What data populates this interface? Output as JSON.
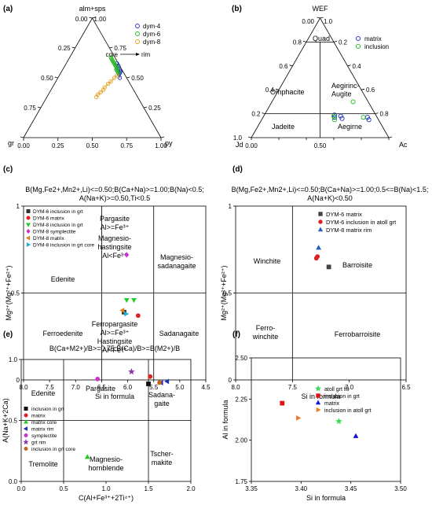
{
  "chart_data": [
    {
      "id": "a",
      "type": "ternary",
      "panel_label": "(a)",
      "apex_labels": {
        "top": "alm+sps",
        "left": "gr",
        "right": "py"
      },
      "tick_values": [
        "0.00",
        "0.25",
        "0.50",
        "0.75",
        "1.00"
      ],
      "annotation": "core → rim",
      "legend": {
        "placement": "top-right",
        "entries": [
          "dym-4",
          "dym-6",
          "dym-8"
        ]
      },
      "series": [
        {
          "name": "dym-4",
          "color": "#1f2fbf",
          "marker": "open-circle",
          "points": [
            [
              0.54,
              0.43
            ],
            [
              0.55,
              0.43
            ],
            [
              0.56,
              0.42
            ],
            [
              0.53,
              0.43
            ],
            [
              0.5,
              0.45
            ],
            [
              0.58,
              0.4
            ],
            [
              0.6,
              0.39
            ],
            [
              0.62,
              0.37
            ]
          ]
        },
        {
          "name": "dym-6",
          "color": "#22b822",
          "marker": "open-circle",
          "points": [
            [
              0.54,
              0.42
            ],
            [
              0.55,
              0.41
            ],
            [
              0.56,
              0.4
            ],
            [
              0.57,
              0.39
            ],
            [
              0.58,
              0.39
            ],
            [
              0.59,
              0.38
            ],
            [
              0.6,
              0.37
            ],
            [
              0.61,
              0.36
            ],
            [
              0.62,
              0.35
            ],
            [
              0.63,
              0.34
            ],
            [
              0.64,
              0.33
            ],
            [
              0.65,
              0.32
            ],
            [
              0.66,
              0.31
            ],
            [
              0.67,
              0.3
            ]
          ]
        },
        {
          "name": "dym-8",
          "color": "#e0a020",
          "marker": "open-circle",
          "points": [
            [
              0.52,
              0.42
            ],
            [
              0.5,
              0.41
            ],
            [
              0.47,
              0.4
            ],
            [
              0.45,
              0.39
            ],
            [
              0.42,
              0.38
            ],
            [
              0.4,
              0.38
            ],
            [
              0.38,
              0.37
            ],
            [
              0.36,
              0.36
            ],
            [
              0.34,
              0.36
            ]
          ]
        }
      ]
    },
    {
      "id": "b",
      "type": "ternary",
      "panel_label": "(b)",
      "apex_labels": {
        "top": "WEF",
        "left": "Jd",
        "right": "Ac"
      },
      "tick_values": [
        "0.00",
        "0.2",
        "0.4",
        "0.6",
        "0.8",
        "1.0"
      ],
      "field_labels": [
        "Quad",
        "Omphacite",
        "Aegirinc-\nAugite",
        "Jadeite",
        "Aegirne"
      ],
      "legend": {
        "placement": "top-right",
        "entries": [
          "matrix",
          "inclusion"
        ]
      },
      "series": [
        {
          "name": "matrix",
          "color": "#1f2fbf",
          "marker": "open-circle",
          "points": [
            [
              0.15,
              0.78
            ],
            [
              0.17,
              0.76
            ],
            [
              0.16,
              0.58
            ],
            [
              0.18,
              0.56
            ],
            [
              0.17,
              0.52
            ],
            [
              0.19,
              0.51
            ]
          ]
        },
        {
          "name": "inclusion",
          "color": "#22b822",
          "marker": "open-circle",
          "points": [
            [
              0.17,
              0.73
            ],
            [
              0.15,
              0.53
            ],
            [
              0.18,
              0.51
            ],
            [
              0.3,
              0.59
            ]
          ]
        }
      ]
    },
    {
      "id": "c",
      "type": "scatter",
      "panel_label": "(c)",
      "title": "B(Mg,Fe2+,Mn2+,Li)<=0.50;B(Ca+Na)>=1.00;B(Na)<0.5;\nA(Na+K)>=0.50,Ti<0.5",
      "xlabel": "Si in formula",
      "ylabel": "Mg²⁺(Mg²⁺+Fe²⁺)",
      "xlim": [
        8.0,
        4.5
      ],
      "ylim": [
        0,
        1
      ],
      "x_ticks": [
        "8.0",
        "7.5",
        "7.0",
        "6.5",
        "6.0",
        "5.5",
        "5.0",
        "4.5"
      ],
      "y_ticks": [
        "0",
        "0.5",
        "1"
      ],
      "field_labels": [
        "Pargasite\nAl>=Fe³⁺",
        "Magnesio-\nhastingsite\nAl<Fe³⁺",
        "Magnesio-\nsadanagaite",
        "Edenite",
        "Ferroedenite",
        "Ferropargasite\nAl>=Fe³⁺\nHastingsite\nAl<Fe³⁺",
        "Sadanagaite"
      ],
      "legend": {
        "placement": "top-left",
        "entries": [
          "DYM-6 inclusion in grt",
          "DYM-6 matrix",
          "DYM-8 inclusion in grt",
          "DYM-8 symplectite",
          "DYM-8 matrix",
          "DYM-8 inclusion in grt core"
        ]
      },
      "series": [
        {
          "name": "DYM-6 inclusion in grt",
          "color": "#333333",
          "marker": "square",
          "x": [
            6.07
          ],
          "y": [
            0.39
          ]
        },
        {
          "name": "DYM-6 matrix",
          "color": "#e02020",
          "marker": "circle",
          "x": [
            5.8
          ],
          "y": [
            0.37
          ]
        },
        {
          "name": "DYM-8 inclusion in grt",
          "color": "#22cc22",
          "marker": "triangle-down",
          "x": [
            6.02,
            5.88
          ],
          "y": [
            0.46,
            0.46
          ]
        },
        {
          "name": "DYM-8 symplectite",
          "color": "#cc33cc",
          "marker": "diamond",
          "x": [
            6.02
          ],
          "y": [
            0.72
          ]
        },
        {
          "name": "DYM-8 matrix",
          "color": "#e08020",
          "marker": "triangle-left",
          "x": [
            6.1
          ],
          "y": [
            0.4
          ]
        },
        {
          "name": "DYM-8 inclusion in grt core",
          "color": "#20b0d0",
          "marker": "triangle-right",
          "x": [
            6.03
          ],
          "y": [
            0.38
          ]
        }
      ]
    },
    {
      "id": "d",
      "type": "scatter",
      "panel_label": "(d)",
      "title": "B(Mg,Fe2+,Mn2+,Li)<=0.50;B(Ca+Na)>=1.00;0.5<=B(Na)<1.5;\nA(Na+K)<0.50",
      "xlabel": "Si in formula",
      "ylabel": "Mg²⁺(Mg²⁺+Fe²⁺)",
      "xlim": [
        8.0,
        6.5
      ],
      "ylim": [
        0,
        1
      ],
      "x_ticks": [
        "8.0",
        "7.5",
        "7.0",
        "6.5"
      ],
      "y_ticks": [
        "0",
        "0.5",
        "1"
      ],
      "field_labels": [
        "Winchite",
        "Barroisite",
        "Ferro-\nwinchite",
        "Ferrobarroisite"
      ],
      "legend": {
        "placement": "top-right",
        "entries": [
          "DYM-6 matrix",
          "DYM-6 inclusion in atoll grt",
          "DYM-8 matrix rim"
        ]
      },
      "series": [
        {
          "name": "DYM-6 matrix",
          "color": "#444444",
          "marker": "square",
          "x": [
            7.18
          ],
          "y": [
            0.65
          ]
        },
        {
          "name": "DYM-6 inclusion in atoll grt",
          "color": "#e02020",
          "marker": "circle",
          "x": [
            7.29,
            7.28
          ],
          "y": [
            0.7,
            0.71
          ]
        },
        {
          "name": "DYM-8 matrix rim",
          "color": "#2060c0",
          "marker": "triangle",
          "x": [
            7.27
          ],
          "y": [
            0.76
          ]
        }
      ]
    },
    {
      "id": "e",
      "type": "scatter",
      "panel_label": "(e)",
      "title": "B(Ca+M2+)/B>=0.75,B(Ca)/B>=B(M2+)/B",
      "xlabel": "C(Al+Fe³⁺+2Ti⁴⁺)",
      "ylabel": "A(Na+K+2Ca)",
      "xlim": [
        0,
        2
      ],
      "ylim": [
        0,
        1
      ],
      "x_ticks": [
        "0.0",
        "0.5",
        "1.0",
        "1.5",
        "2.0"
      ],
      "y_ticks": [
        "0.0",
        "0.5",
        "1.0"
      ],
      "field_labels": [
        "Edenite",
        "Pargasite",
        "Sadana-\ngaite",
        "Tremolite",
        "Magnesio-\nhornblende",
        "Tscher-\nmakite"
      ],
      "legend": {
        "placement": "bottom-left",
        "entries": [
          "inclusion in grt",
          "matrix",
          "matrix core",
          "matrix rim",
          "symplectite",
          "grt rim",
          "inclusion in grt core"
        ]
      },
      "series": [
        {
          "name": "inclusion in grt",
          "color": "#111111",
          "marker": "square",
          "x": [
            1.5
          ],
          "y": [
            0.8
          ]
        },
        {
          "name": "matrix",
          "color": "#e02020",
          "marker": "circle",
          "x": [
            1.52
          ],
          "y": [
            0.86
          ]
        },
        {
          "name": "matrix core",
          "color": "#22cc22",
          "marker": "triangle",
          "x": [
            0.78
          ],
          "y": [
            0.2
          ]
        },
        {
          "name": "matrix rim",
          "color": "#2030c0",
          "marker": "triangle-left",
          "x": [
            1.72,
            1.65
          ],
          "y": [
            0.82,
            0.81
          ]
        },
        {
          "name": "symplectite",
          "color": "#cc33cc",
          "marker": "circle",
          "x": [
            0.9
          ],
          "y": [
            0.84
          ]
        },
        {
          "name": "grt rim",
          "color": "#8833aa",
          "marker": "star",
          "x": [
            1.3
          ],
          "y": [
            0.9
          ]
        },
        {
          "name": "inclusion in grt core",
          "color": "#c86418",
          "marker": "circle",
          "x": [
            1.63
          ],
          "y": [
            0.81
          ]
        }
      ]
    },
    {
      "id": "f",
      "type": "scatter",
      "panel_label": "(f)",
      "xlabel": "Si in formula",
      "ylabel": "Al in formula",
      "xlim": [
        3.35,
        3.5
      ],
      "ylim": [
        1.75,
        2.5
      ],
      "x_ticks": [
        "3.35",
        "3.40",
        "3.45",
        "3.50"
      ],
      "y_ticks": [
        "1.75",
        "2.00",
        "2.25",
        "2.50"
      ],
      "legend": {
        "placement": "top-center",
        "entries": [
          "atoll grt fill",
          "inclusion in grt",
          "matrix",
          "inclusion in atoll grt"
        ]
      },
      "series": [
        {
          "name": "atoll grt fill",
          "color": "#33dd55",
          "marker": "star",
          "x": [
            3.438
          ],
          "y": [
            2.115
          ]
        },
        {
          "name": "inclusion in grt",
          "color": "#dd1111",
          "marker": "square",
          "x": [
            3.381
          ],
          "y": [
            2.225
          ]
        },
        {
          "name": "matrix",
          "color": "#1111dd",
          "marker": "triangle",
          "x": [
            3.455
          ],
          "y": [
            2.025
          ]
        },
        {
          "name": "inclusion in atoll grt",
          "color": "#ee7722",
          "marker": "triangle-right",
          "x": [
            3.397
          ],
          "y": [
            2.135
          ]
        }
      ]
    }
  ]
}
